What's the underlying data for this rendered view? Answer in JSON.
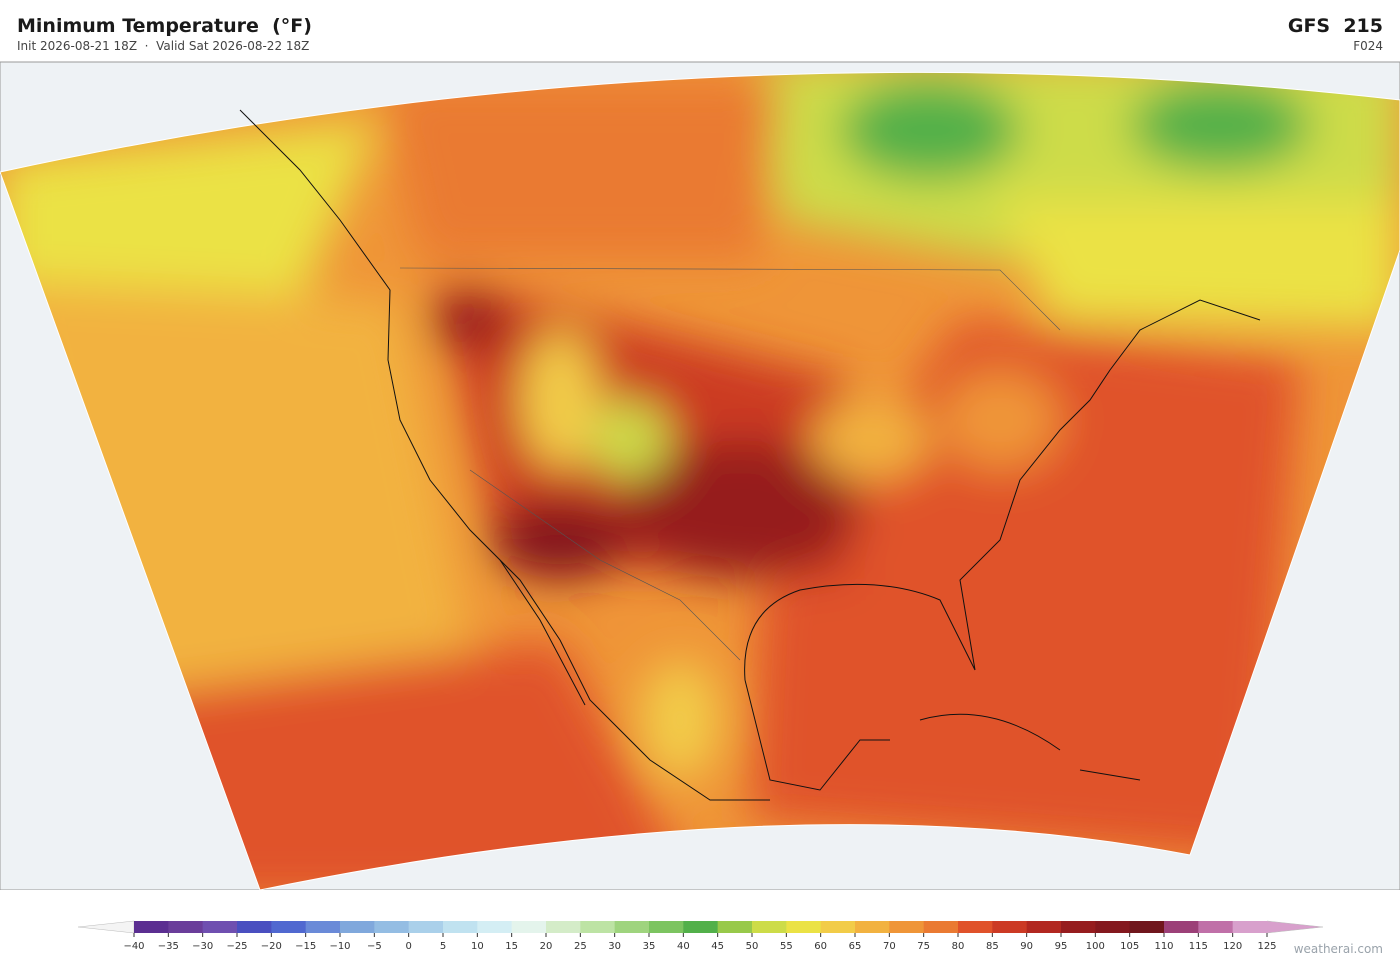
{
  "header": {
    "title": "Minimum Temperature  (°F)",
    "subtitle": "Init 2026-08-21 18Z  ·  Valid Sat 2026-08-22 18Z",
    "model": "GFS  215",
    "forecast_hour": "F024"
  },
  "colorbar": {
    "ticks": [
      {
        "value": -40,
        "label": "−40"
      },
      {
        "value": -35,
        "label": "−35"
      },
      {
        "value": -30,
        "label": "−30"
      },
      {
        "value": -25,
        "label": "−25"
      },
      {
        "value": -20,
        "label": "−20"
      },
      {
        "value": -15,
        "label": "−15"
      },
      {
        "value": -10,
        "label": "−10"
      },
      {
        "value": -5,
        "label": "−5"
      },
      0,
      5,
      10,
      15,
      20,
      25,
      30,
      35,
      40,
      45,
      50,
      55,
      60,
      65,
      70,
      75,
      80,
      85,
      90,
      95,
      100,
      105,
      110,
      115,
      120,
      125
    ],
    "colors": [
      "#5b2e91",
      "#6a3d9a",
      "#6f4fb0",
      "#4a4fc0",
      "#5068d0",
      "#6a8ad8",
      "#80a8dc",
      "#94bde3",
      "#aad0ea",
      "#c0e2f0",
      "#d4eef4",
      "#e4f4ec",
      "#d4ecc8",
      "#bde3a4",
      "#9fd47e",
      "#7cc460",
      "#52b04a",
      "#98c94a",
      "#cddc48",
      "#ebe245",
      "#f2cc48",
      "#f2b240",
      "#ef9538",
      "#ea7a32",
      "#e0522a",
      "#cc3a24",
      "#b22820",
      "#961c1e",
      "#84181e",
      "#70161c",
      "#9c4078",
      "#c070a8",
      "#d8a0cc"
    ],
    "under_color": "#f4f4f4",
    "over_color": "#d8a0cc"
  },
  "footer": {
    "watermark": "weatherai.com"
  }
}
